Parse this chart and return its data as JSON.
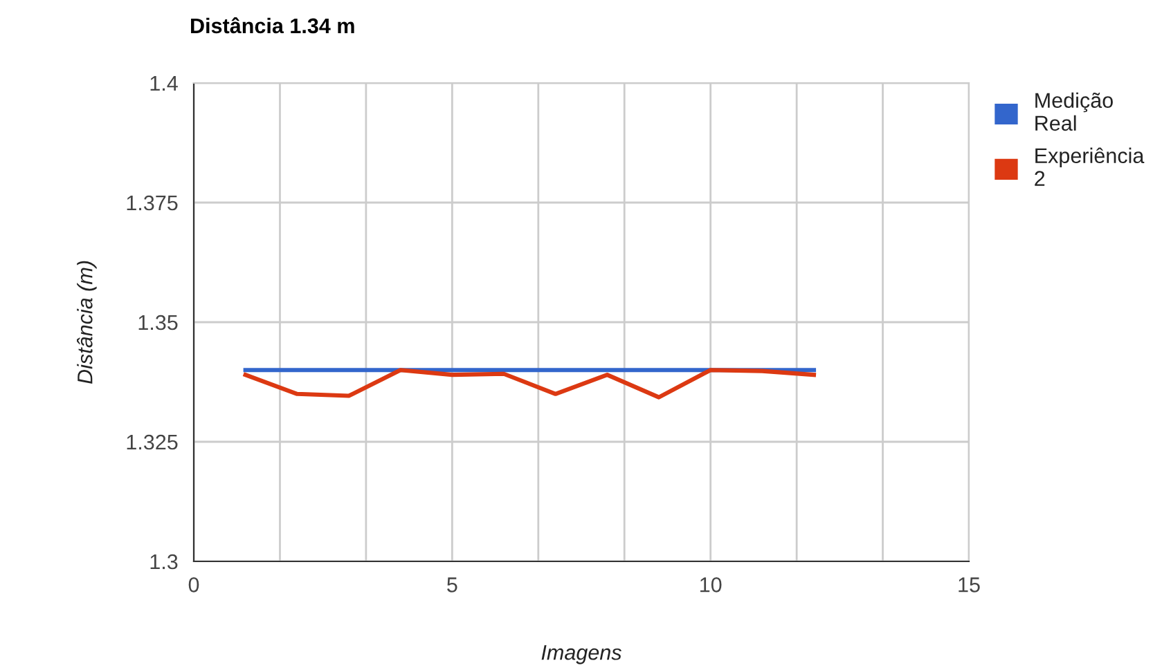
{
  "chart_data": {
    "type": "line",
    "title": "Distância 1.34 m",
    "xlabel": "Imagens",
    "ylabel": "Distância (m)",
    "x": [
      1,
      2,
      3,
      4,
      5,
      6,
      7,
      8,
      9,
      10,
      11,
      12
    ],
    "series": [
      {
        "name": "Medição Real",
        "color": "#3366cc",
        "values": [
          1.34,
          1.34,
          1.34,
          1.34,
          1.34,
          1.34,
          1.34,
          1.34,
          1.34,
          1.34,
          1.34,
          1.34
        ]
      },
      {
        "name": "Experiência 2",
        "color": "#dc3912",
        "values": [
          1.339,
          1.335,
          1.3346,
          1.34,
          1.339,
          1.3392,
          1.335,
          1.339,
          1.3343,
          1.34,
          1.3398,
          1.339
        ]
      }
    ],
    "xlim": [
      0,
      15
    ],
    "ylim": [
      1.3,
      1.4
    ],
    "xticks": [
      0,
      {
        "value": 1.667,
        "label": null
      },
      {
        "value": 3.333,
        "label": null
      },
      5,
      {
        "value": 6.667,
        "label": null
      },
      {
        "value": 8.333,
        "label": null
      },
      10,
      {
        "value": 11.667,
        "label": null
      },
      {
        "value": 13.333,
        "label": null
      },
      15
    ],
    "yticks": [
      1.3,
      1.325,
      1.35,
      1.375,
      1.4
    ],
    "grid": true,
    "legend": "top right",
    "marker": "none",
    "line_style": "solid"
  }
}
